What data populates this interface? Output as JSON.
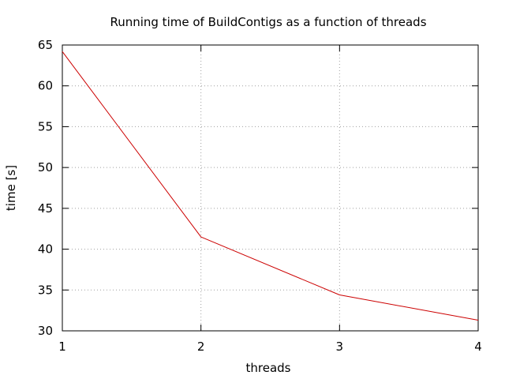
{
  "chart_data": {
    "type": "line",
    "title": "Running time of BuildContigs as a function of threads",
    "xlabel": "threads",
    "ylabel": "time [s]",
    "xlim": [
      1,
      4
    ],
    "ylim": [
      30,
      65
    ],
    "x_ticks": [
      1,
      2,
      3,
      4
    ],
    "y_ticks": [
      30,
      35,
      40,
      45,
      50,
      55,
      60,
      65
    ],
    "grid": true,
    "legend": "none",
    "series": [
      {
        "color": "#cc0000",
        "x": [
          1,
          2,
          3,
          4
        ],
        "y": [
          64.2,
          41.5,
          34.4,
          31.3
        ]
      }
    ]
  }
}
